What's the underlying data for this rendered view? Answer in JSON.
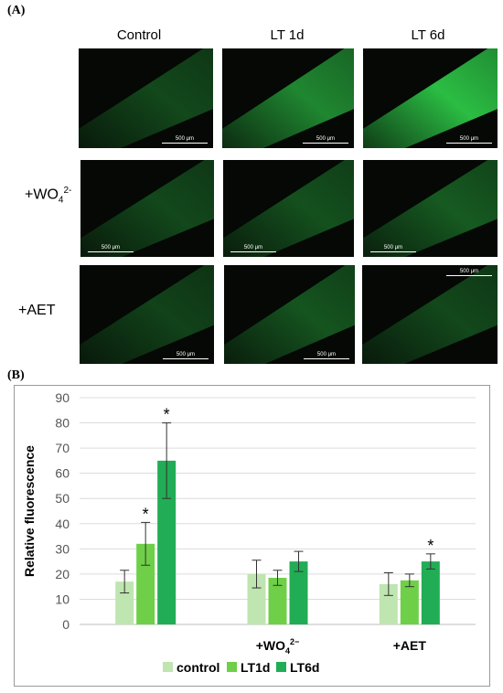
{
  "panel_a": {
    "label": "(A)",
    "column_headers": [
      "Control",
      "LT 1d",
      "LT 6d"
    ],
    "row_labels": [
      {
        "base": "",
        "sub": "",
        "sup": ""
      },
      {
        "base": "+WO",
        "sub": "4",
        "sup": "2-"
      },
      {
        "base": "+AET",
        "sub": "",
        "sup": ""
      }
    ],
    "scale_bar_text": "500 μm",
    "fluorescence_color": "#2fd14a"
  },
  "panel_b": {
    "label": "(B)"
  },
  "chart_data": {
    "type": "bar",
    "categories": [
      {
        "base": "",
        "sub": "",
        "sup": ""
      },
      {
        "base": "+WO",
        "sub": "4",
        "sup": "2−"
      },
      {
        "base": "+AET",
        "sub": "",
        "sup": ""
      }
    ],
    "series": [
      {
        "name": "control",
        "color": "#bfe5b0",
        "values": [
          17,
          20,
          16
        ],
        "errors": [
          4.5,
          5.5,
          4.5
        ],
        "significant": [
          false,
          false,
          false
        ]
      },
      {
        "name": "LT1d",
        "color": "#6fcf48",
        "values": [
          32,
          18.5,
          17.5
        ],
        "errors": [
          8.5,
          3,
          2.5
        ],
        "significant": [
          true,
          false,
          false
        ]
      },
      {
        "name": "LT6d",
        "color": "#21ad55",
        "values": [
          65,
          25,
          25
        ],
        "errors": [
          15,
          4,
          3
        ],
        "significant": [
          true,
          false,
          true
        ]
      }
    ],
    "ylabel": "Relative fluorescence",
    "xlabel": "",
    "ylim": [
      0,
      90
    ],
    "yticks": [
      0,
      10,
      20,
      30,
      40,
      50,
      60,
      70,
      80,
      90
    ],
    "significance_marker": "*",
    "grid": true,
    "legend_position": "bottom"
  }
}
